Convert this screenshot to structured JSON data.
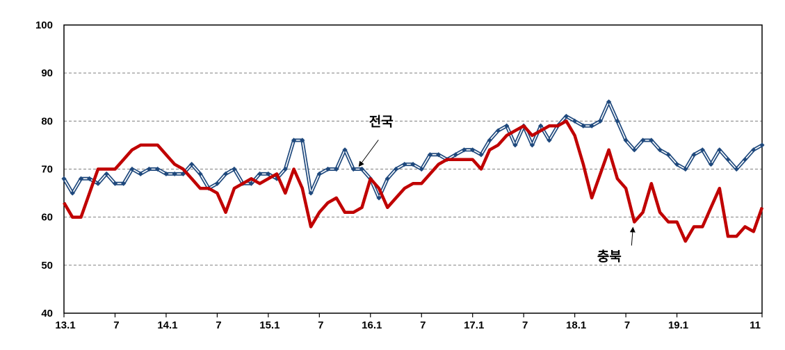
{
  "chart_data": {
    "type": "line",
    "title": "",
    "xlabel": "",
    "ylabel": "",
    "ylim": [
      40,
      100
    ],
    "yticks": [
      40,
      50,
      60,
      70,
      80,
      90,
      100
    ],
    "grid": "horizontal-dashed",
    "x_start_label": "13.1",
    "x_tick_labels": [
      {
        "index": 0,
        "label": "13.1"
      },
      {
        "index": 6,
        "label": "7"
      },
      {
        "index": 12,
        "label": "14.1"
      },
      {
        "index": 18,
        "label": "7"
      },
      {
        "index": 24,
        "label": "15.1"
      },
      {
        "index": 30,
        "label": "7"
      },
      {
        "index": 36,
        "label": "16.1"
      },
      {
        "index": 42,
        "label": "7"
      },
      {
        "index": 48,
        "label": "17.1"
      },
      {
        "index": 54,
        "label": "7"
      },
      {
        "index": 60,
        "label": "18.1"
      },
      {
        "index": 66,
        "label": "7"
      },
      {
        "index": 72,
        "label": "19.1"
      },
      {
        "index": 82,
        "label": "11"
      }
    ],
    "series": [
      {
        "name": "전국",
        "color": "#1f497d",
        "style": "double-line-with-diamond-markers",
        "values": [
          68,
          65,
          68,
          68,
          67,
          69,
          67,
          67,
          70,
          69,
          70,
          70,
          69,
          69,
          69,
          71,
          69,
          66,
          67,
          69,
          70,
          67,
          67,
          69,
          69,
          68,
          70,
          76,
          76,
          65,
          69,
          70,
          70,
          74,
          70,
          70,
          68,
          64,
          68,
          70,
          71,
          71,
          70,
          73,
          73,
          72,
          73,
          74,
          74,
          73,
          76,
          78,
          79,
          75,
          79,
          75,
          79,
          76,
          79,
          81,
          80,
          79,
          79,
          80,
          84,
          80,
          76,
          74,
          76,
          76,
          74,
          73,
          71,
          70,
          73,
          74,
          71,
          74,
          72,
          70,
          72,
          74,
          75
        ]
      },
      {
        "name": "충북",
        "color": "#c00000",
        "style": "thick-line",
        "values": [
          63,
          60,
          60,
          65,
          70,
          70,
          70,
          72,
          74,
          75,
          75,
          75,
          73,
          71,
          70,
          68,
          66,
          66,
          65,
          61,
          66,
          67,
          68,
          67,
          68,
          69,
          65,
          70,
          66,
          58,
          61,
          63,
          64,
          61,
          61,
          62,
          68,
          66,
          62,
          64,
          66,
          67,
          67,
          69,
          71,
          72,
          72,
          72,
          72,
          70,
          74,
          75,
          77,
          78,
          79,
          77,
          78,
          79,
          79,
          80,
          77,
          71,
          64,
          69,
          74,
          68,
          66,
          59,
          61,
          67,
          61,
          59,
          59,
          55,
          58,
          58,
          62,
          66,
          56,
          56,
          58,
          57,
          62
        ]
      }
    ],
    "annotations": [
      {
        "text": "전국",
        "series": "전국",
        "point_index": 34
      },
      {
        "text": "충북",
        "series": "충북",
        "point_index": 67
      }
    ]
  }
}
